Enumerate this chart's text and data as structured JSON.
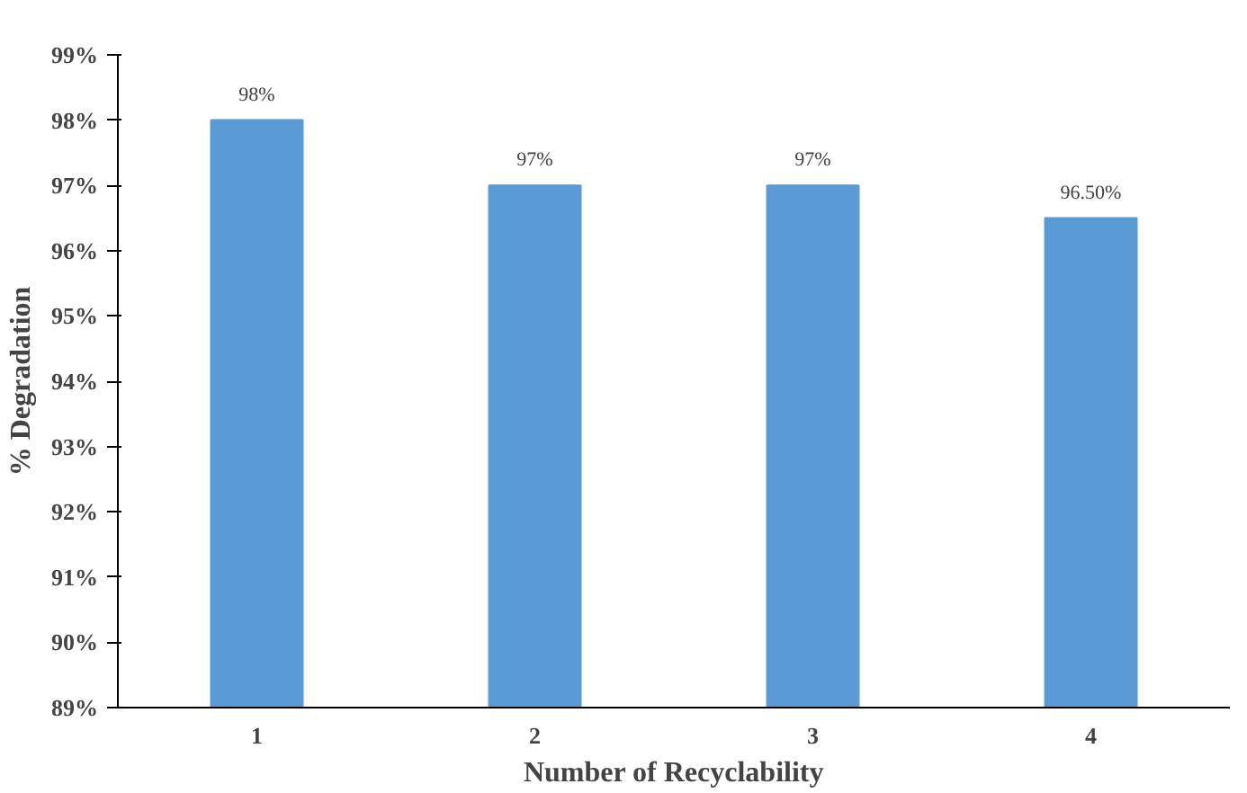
{
  "chart_data": {
    "type": "bar",
    "xlabel": "Number of Recyclability",
    "ylabel": "% Degradation",
    "categories": [
      "1",
      "2",
      "3",
      "4"
    ],
    "values": [
      98,
      97,
      97,
      96.5
    ],
    "value_labels": [
      "98%",
      "97%",
      "97%",
      "96.50%"
    ],
    "color": "#5b9bd5",
    "ylim": [
      89,
      99
    ],
    "yticks": [
      {
        "value": 89,
        "label": "89%"
      },
      {
        "value": 90,
        "label": "90%"
      },
      {
        "value": 91,
        "label": "91%"
      },
      {
        "value": 92,
        "label": "92%"
      },
      {
        "value": 93,
        "label": "93%"
      },
      {
        "value": 94,
        "label": "94%"
      },
      {
        "value": 95,
        "label": "95%"
      },
      {
        "value": 96,
        "label": "96%"
      },
      {
        "value": 97,
        "label": "97%"
      },
      {
        "value": 98,
        "label": "98%"
      },
      {
        "value": 99,
        "label": "99%"
      }
    ],
    "grid": false
  }
}
